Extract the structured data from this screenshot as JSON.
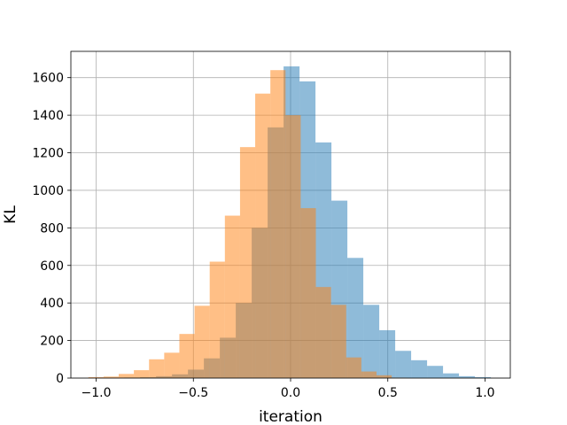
{
  "chart_data": {
    "type": "bar",
    "subtype": "overlapping-histogram",
    "title": "",
    "xlabel": "iteration",
    "ylabel": "KL",
    "xlim": [
      -1.13,
      1.13
    ],
    "ylim": [
      0,
      1740
    ],
    "xticks": [
      -1.0,
      -0.5,
      0.0,
      0.5,
      1.0
    ],
    "xtick_labels": [
      "−1.0",
      "−0.5",
      "0.0",
      "0.5",
      "1.0"
    ],
    "yticks": [
      0,
      200,
      400,
      600,
      800,
      1000,
      1200,
      1400,
      1600
    ],
    "ytick_labels": [
      "0",
      "200",
      "400",
      "600",
      "800",
      "1000",
      "1200",
      "1400",
      "1600"
    ],
    "grid": true,
    "legend": "none",
    "bar_alpha": 0.5,
    "series": [
      {
        "color": "#1f77b4",
        "bin_edges": [
          -1.02,
          -0.938,
          -0.856,
          -0.774,
          -0.692,
          -0.61,
          -0.528,
          -0.446,
          -0.364,
          -0.282,
          -0.2,
          -0.118,
          -0.036,
          0.046,
          0.128,
          0.21,
          0.292,
          0.374,
          0.456,
          0.538,
          0.62,
          0.702,
          0.784,
          0.866,
          0.948,
          1.03
        ],
        "counts": [
          1,
          2,
          3,
          5,
          10,
          20,
          45,
          105,
          215,
          400,
          800,
          1335,
          1660,
          1580,
          1255,
          945,
          640,
          390,
          255,
          145,
          95,
          65,
          25,
          10,
          5
        ]
      },
      {
        "color": "#ff7f0e",
        "bin_edges": [
          -1.04,
          -0.962,
          -0.884,
          -0.806,
          -0.728,
          -0.65,
          -0.572,
          -0.494,
          -0.416,
          -0.338,
          -0.26,
          -0.182,
          -0.104,
          -0.026,
          0.052,
          0.13,
          0.208,
          0.286,
          0.364,
          0.442,
          0.52,
          0.598
        ],
        "counts": [
          5,
          8,
          22,
          42,
          100,
          135,
          235,
          385,
          620,
          865,
          1230,
          1515,
          1640,
          1400,
          905,
          485,
          390,
          110,
          35,
          15,
          2
        ]
      }
    ]
  }
}
